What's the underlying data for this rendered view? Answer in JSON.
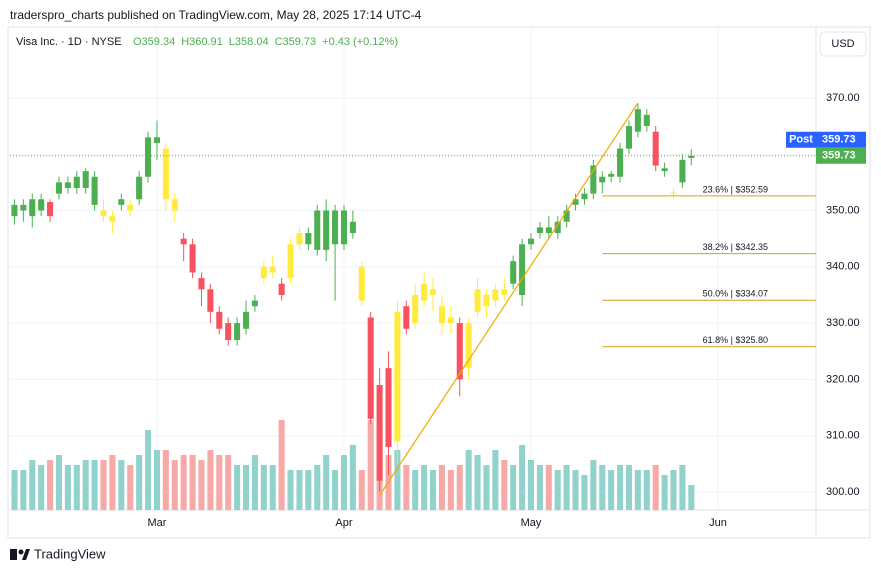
{
  "header": "traderspro_charts published on TradingView.com, May 28, 2025 17:14 UTC-4",
  "footer": "TradingView",
  "chart_data": {
    "type": "candlestick",
    "legend": {
      "symbol": "Visa Inc. · 1D · NYSE",
      "ohlc": [
        "O359.34",
        "H360.91",
        "L358.04",
        "C359.73"
      ],
      "change": "+0.43 (+0.12%)"
    },
    "currency": "USD",
    "x": [
      0,
      1,
      2,
      3,
      4,
      5,
      6,
      7,
      8,
      9,
      10,
      11,
      12,
      13,
      14,
      15,
      16,
      17,
      18,
      19,
      20,
      21,
      22,
      23,
      24,
      25,
      26,
      27,
      28,
      29,
      30,
      31,
      32,
      33,
      34,
      35,
      36,
      37,
      38,
      39,
      40,
      41,
      42,
      43,
      44,
      45,
      46,
      47,
      48,
      49,
      50,
      51,
      52,
      53,
      54,
      55,
      56,
      57,
      58,
      59,
      60,
      61,
      62,
      63,
      64,
      65,
      66,
      67,
      68,
      69,
      70,
      71,
      72,
      73,
      74,
      75,
      76
    ],
    "open": [
      349,
      350,
      349,
      350,
      351.5,
      353,
      354,
      354,
      354,
      351,
      350,
      349,
      351,
      351,
      352,
      356,
      362,
      361,
      352,
      345,
      344,
      338,
      336,
      332,
      330,
      327,
      329,
      333,
      338,
      339,
      337,
      338,
      344,
      344,
      343,
      343,
      344,
      344,
      346,
      340,
      331,
      319,
      322,
      309,
      333,
      330,
      334,
      335,
      333,
      331,
      330,
      322,
      332,
      333,
      334,
      336,
      337,
      335,
      344,
      346,
      347,
      346,
      348,
      351,
      352,
      353,
      355,
      356,
      356,
      361,
      364,
      365,
      364,
      357,
      353,
      355,
      359.34
    ],
    "high": [
      352,
      352,
      353,
      353,
      352,
      356,
      356,
      357,
      357.5,
      357,
      352,
      350,
      353,
      352,
      357,
      364,
      366,
      362,
      353,
      346,
      345,
      339,
      337,
      333,
      331,
      331,
      334,
      335,
      341,
      342,
      338,
      345,
      347,
      347,
      351,
      352,
      351,
      351,
      350,
      341,
      332,
      322,
      325,
      334,
      334,
      337,
      339,
      338,
      335,
      333,
      331,
      331,
      338,
      336,
      337,
      338,
      342,
      345,
      346,
      348,
      349,
      349,
      351,
      353,
      354,
      359,
      357,
      357,
      362,
      366,
      369,
      368,
      365,
      358.5,
      354,
      360,
      360.91
    ],
    "low": [
      347.5,
      348,
      347,
      349,
      348,
      352,
      353,
      353,
      353,
      350,
      348,
      346,
      350,
      349,
      351,
      355,
      359,
      350,
      348,
      341,
      338,
      333,
      330,
      328,
      326,
      326,
      328,
      332,
      337,
      338,
      334,
      337,
      343,
      343,
      342,
      341,
      334,
      343,
      345,
      333,
      312,
      300,
      303,
      305,
      328,
      329,
      333,
      332,
      328,
      328,
      317,
      320,
      331,
      331,
      333,
      334,
      336,
      333,
      343,
      345,
      345,
      345,
      347,
      350,
      351,
      352,
      353,
      355,
      355,
      360,
      363,
      364,
      357,
      356,
      352,
      354,
      358.04
    ],
    "close": [
      351,
      351,
      352,
      352,
      349,
      355,
      355,
      356,
      357,
      356,
      349,
      348,
      352,
      350,
      356,
      363,
      363,
      352,
      350,
      344,
      339,
      336,
      332,
      329,
      327,
      330,
      332,
      334,
      340,
      340,
      335,
      344,
      346,
      346,
      350,
      350,
      350,
      350,
      348,
      334,
      313,
      302,
      308,
      332,
      329,
      335,
      337,
      336,
      330,
      330,
      320,
      330,
      336,
      335,
      336,
      335,
      341,
      344,
      345,
      347,
      346,
      348,
      350,
      352,
      353,
      358,
      356,
      356.5,
      361,
      365,
      368,
      367,
      358,
      357.5,
      353.2,
      359,
      359.73
    ],
    "colors": [
      "#4caf50",
      "#4caf50",
      "#4caf50",
      "#4caf50",
      "#f7525f",
      "#4caf50",
      "#4caf50",
      "#4caf50",
      "#4caf50",
      "#4caf50",
      "#ffeb3b",
      "#ffeb3b",
      "#4caf50",
      "#ffeb3b",
      "#4caf50",
      "#4caf50",
      "#4caf50",
      "#ffeb3b",
      "#ffeb3b",
      "#f7525f",
      "#f7525f",
      "#f7525f",
      "#f7525f",
      "#f7525f",
      "#f7525f",
      "#4caf50",
      "#4caf50",
      "#4caf50",
      "#ffeb3b",
      "#ffeb3b",
      "#f7525f",
      "#ffeb3b",
      "#ffeb3b",
      "#4caf50",
      "#4caf50",
      "#4caf50",
      "#4caf50",
      "#4caf50",
      "#4caf50",
      "#ffeb3b",
      "#f7525f",
      "#f7525f",
      "#f7525f",
      "#ffeb3b",
      "#f7525f",
      "#ffeb3b",
      "#ffeb3b",
      "#ffeb3b",
      "#ffeb3b",
      "#ffeb3b",
      "#f7525f",
      "#ffeb3b",
      "#ffeb3b",
      "#ffeb3b",
      "#ffeb3b",
      "#ffeb3b",
      "#4caf50",
      "#4caf50",
      "#4caf50",
      "#4caf50",
      "#4caf50",
      "#4caf50",
      "#4caf50",
      "#4caf50",
      "#4caf50",
      "#4caf50",
      "#4caf50",
      "#4caf50",
      "#4caf50",
      "#4caf50",
      "#4caf50",
      "#4caf50",
      "#f7525f",
      "#4caf50",
      "#ffeb3b",
      "#4caf50",
      "#4caf50"
    ],
    "volume": [
      8,
      8,
      10,
      9,
      10,
      11,
      9,
      9,
      10,
      10,
      10,
      11,
      10,
      9,
      11,
      16,
      12,
      12,
      10,
      11,
      11,
      10,
      12,
      11,
      11,
      9,
      9,
      11,
      9,
      9,
      18,
      8,
      8,
      8,
      9,
      11,
      8,
      11,
      13,
      8,
      18,
      17,
      11,
      12,
      9,
      8,
      9,
      8,
      9,
      8,
      9,
      12,
      11,
      9,
      12,
      10,
      9,
      13,
      10,
      9,
      9,
      8,
      9,
      8,
      7,
      10,
      9,
      8,
      9,
      9,
      8,
      8,
      9,
      7,
      8,
      9,
      5
    ],
    "volume_colors": [
      "#92d2cc",
      "#f7a9a7"
    ],
    "xlim": [
      -0.5,
      90
    ],
    "xticks": [
      {
        "value": 16,
        "label": "Mar"
      },
      {
        "value": 37,
        "label": "Apr"
      },
      {
        "value": 58,
        "label": "May"
      },
      {
        "value": 79,
        "label": "Jun"
      }
    ],
    "ylim": [
      296.8,
      382.6
    ],
    "yticks": [
      {
        "value": 300,
        "label": "300.00"
      },
      {
        "value": 310,
        "label": "310.00"
      },
      {
        "value": 320,
        "label": "320.00"
      },
      {
        "value": 330,
        "label": "330.00"
      },
      {
        "value": 340,
        "label": "340.00"
      },
      {
        "value": 350,
        "label": "350.00"
      },
      {
        "value": 360,
        "label": "360.00"
      },
      {
        "value": 370,
        "label": "370.00"
      }
    ],
    "grid": true,
    "trend_line": {
      "x": [
        41,
        70
      ],
      "y": [
        299.4,
        369.1
      ],
      "color": "#f7a600"
    },
    "fib_levels": [
      {
        "value": 352.59,
        "label": "23.6% | $352.59"
      },
      {
        "value": 342.35,
        "label": "38.2% | $342.35"
      },
      {
        "value": 334.07,
        "label": "50.0% | $334.07"
      },
      {
        "value": 325.8,
        "label": "61.8% | $325.80"
      }
    ],
    "fib_start": 66,
    "fib_color": "#d4a017",
    "last_price": {
      "value": 359.73,
      "label": "359.73",
      "color": "#4caf50"
    },
    "post_price": {
      "value": 359.73,
      "label": "359.73",
      "tag": "Post",
      "color": "#2962ff"
    }
  }
}
